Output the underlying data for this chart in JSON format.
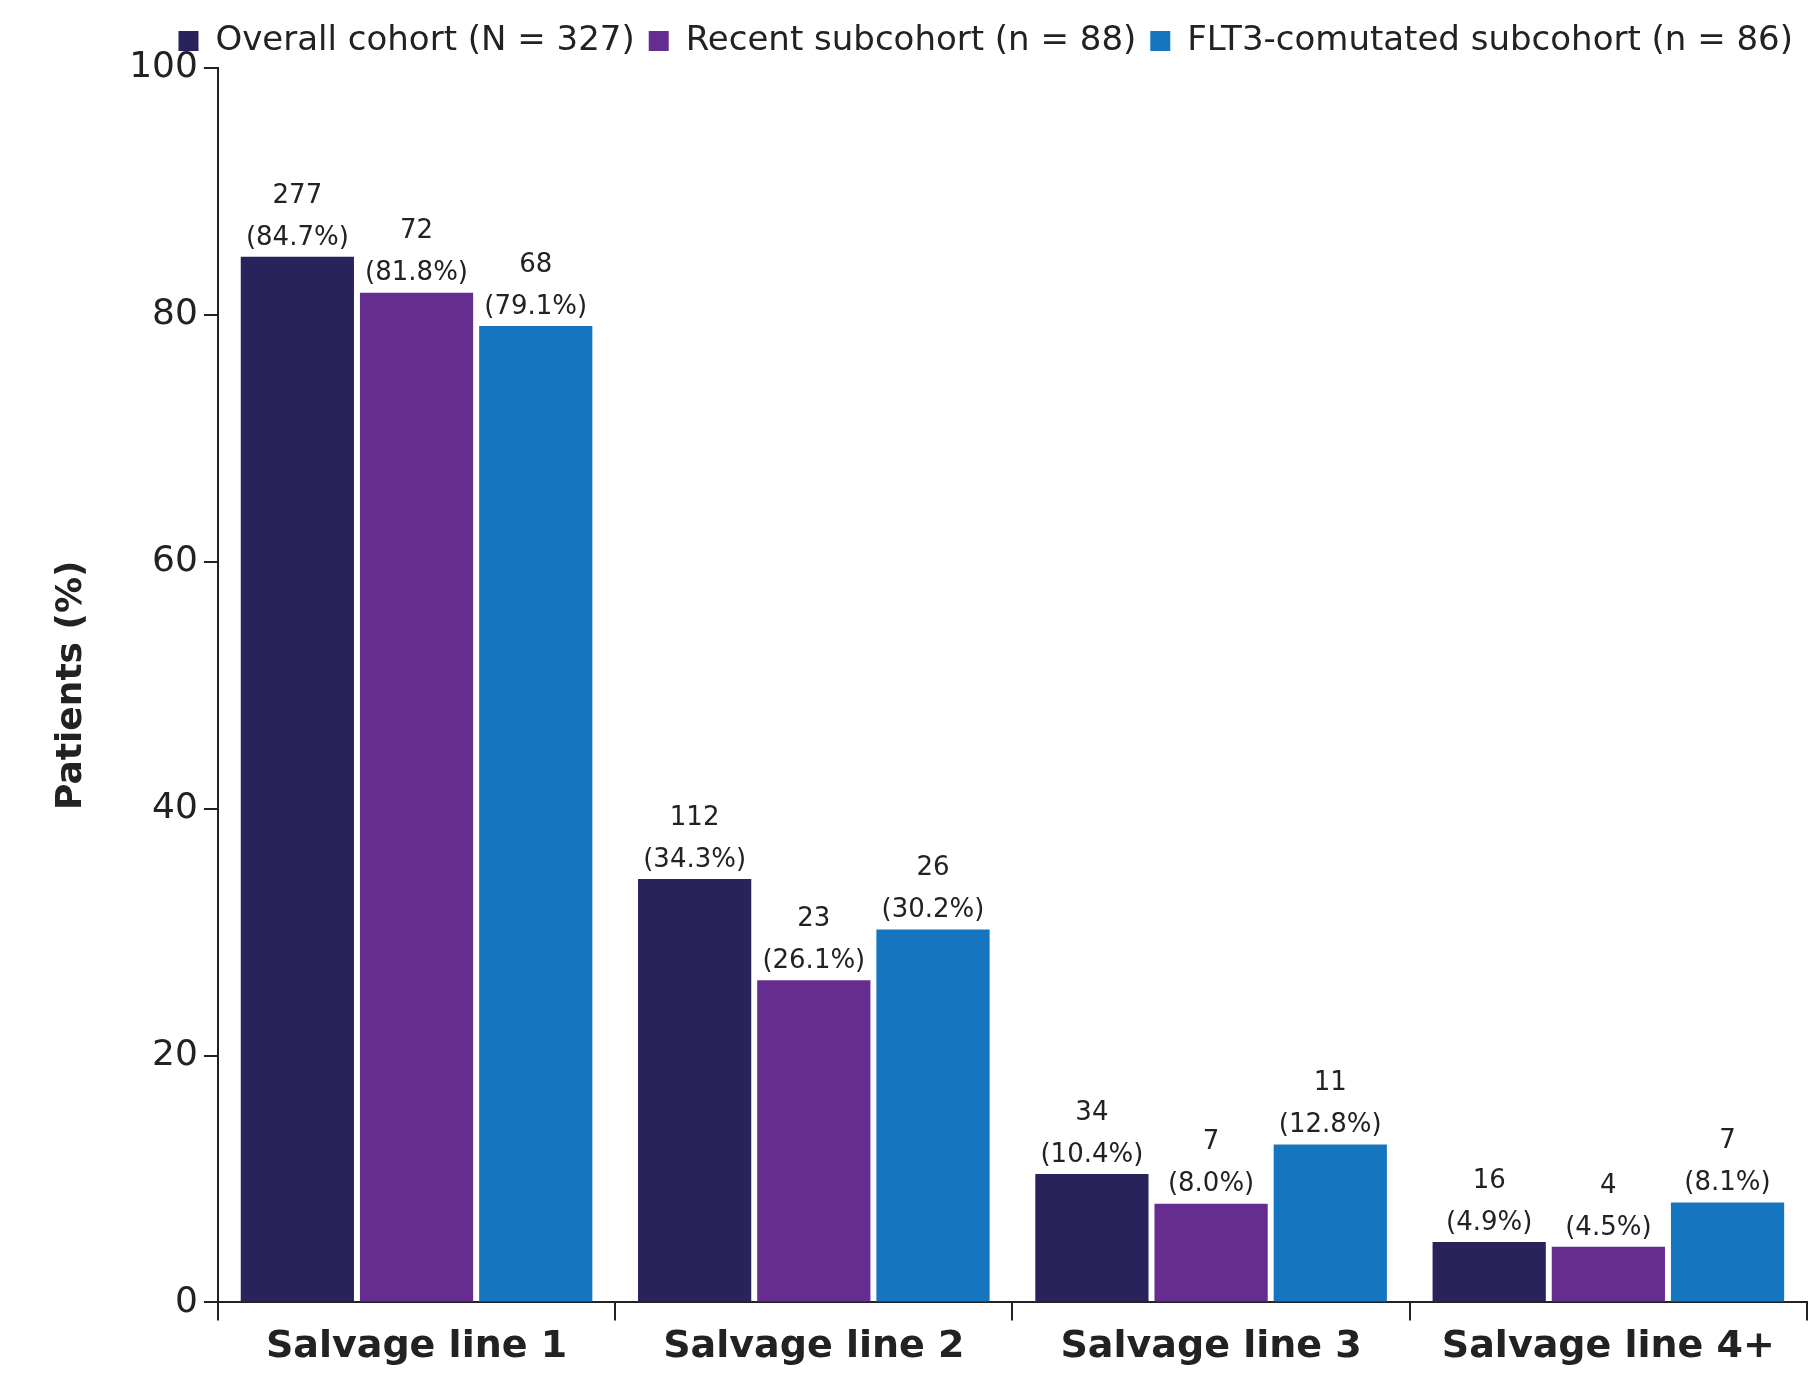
{
  "chart_data": {
    "type": "bar",
    "ylabel": "Patients (%)",
    "categories": [
      "Salvage line 1",
      "Salvage line 2",
      "Salvage line 3",
      "Salvage line 4+"
    ],
    "series": [
      {
        "name": "Overall cohort (N = 327)",
        "color": "#29235c",
        "values": [
          84.7,
          34.3,
          10.4,
          4.9
        ],
        "value_labels": [
          "277 (84.7%)",
          "112 (34.3%)",
          "34 (10.4%)",
          "16 (4.9%)"
        ]
      },
      {
        "name": "Recent subcohort (n = 88)",
        "color": "#662d91",
        "values": [
          81.8,
          26.1,
          8.0,
          4.5
        ],
        "value_labels": [
          "72 (81.8%)",
          "23 (26.1%)",
          "7 (8.0%)",
          "4 (4.5%)"
        ]
      },
      {
        "name": "FLT3-comutated subcohort (n = 86)",
        "color": "#1576bf",
        "values": [
          79.1,
          30.2,
          12.8,
          8.1
        ],
        "value_labels": [
          "68 (79.1%)",
          "26 (30.2%)",
          "11 (12.8%)",
          "7 (8.1%)"
        ]
      }
    ],
    "ylim": [
      0,
      100
    ],
    "yticks": [
      0,
      20,
      40,
      60,
      80,
      100
    ],
    "grid": false,
    "legend": "top right"
  }
}
